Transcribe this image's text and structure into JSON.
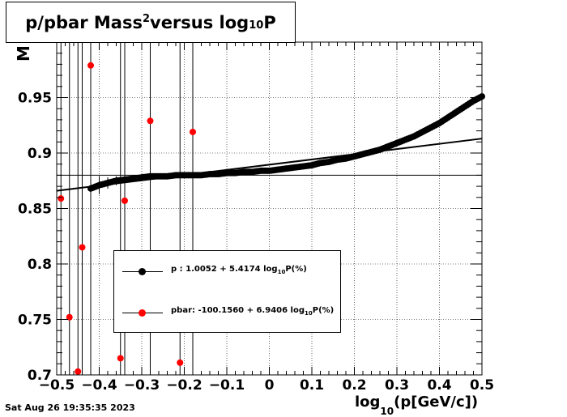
{
  "title": {
    "main": "p/pbar Mass",
    "sup": "2",
    "mid": " versus log",
    "sub": "10",
    "end": "P"
  },
  "timestamp": "Sat Aug 26 19:35:35 2023",
  "xlabel": {
    "pre": "log",
    "sub": "10",
    "post": "(p[GeV/c])"
  },
  "ylabel": "M",
  "legend": [
    {
      "label_pre": "p   : 1.0052 + 5.4174 log",
      "label_sub": "10",
      "label_post": "P(%)",
      "color": "#000000"
    },
    {
      "label_pre": "pbar: -100.1560 + 6.9406 log",
      "label_sub": "10",
      "label_post": "P(%)",
      "color": "#ff0000"
    }
  ],
  "chart_data": {
    "type": "scatter",
    "title": "p/pbar Mass^2 versus log10P",
    "xlabel": "log10(p[GeV/c])",
    "ylabel": "M",
    "xlim": [
      -0.5,
      0.5
    ],
    "ylim": [
      0.7,
      1.0
    ],
    "grid": true,
    "x_ticks": [
      "-0.5",
      "-0.4",
      "-0.3",
      "-0.2",
      "-0.1",
      "0",
      "0.1",
      "0.2",
      "0.3",
      "0.4",
      "0.5"
    ],
    "y_ticks": [
      "0.7",
      "0.75",
      "0.8",
      "0.85",
      "0.9",
      "0.95"
    ],
    "reference_line_y": 0.88,
    "series": [
      {
        "name": "p",
        "color": "#000000",
        "x": [
          -0.42,
          -0.4,
          -0.38,
          -0.36,
          -0.34,
          -0.32,
          -0.3,
          -0.28,
          -0.26,
          -0.24,
          -0.22,
          -0.2,
          -0.18,
          -0.16,
          -0.14,
          -0.12,
          -0.1,
          -0.08,
          -0.06,
          -0.04,
          -0.02,
          0.0,
          0.02,
          0.04,
          0.06,
          0.08,
          0.1,
          0.12,
          0.14,
          0.16,
          0.18,
          0.2,
          0.22,
          0.24,
          0.26,
          0.28,
          0.3,
          0.32,
          0.34,
          0.36,
          0.38,
          0.4,
          0.42,
          0.44,
          0.46,
          0.48,
          0.5
        ],
        "y": [
          0.868,
          0.871,
          0.873,
          0.875,
          0.876,
          0.877,
          0.878,
          0.879,
          0.879,
          0.879,
          0.88,
          0.88,
          0.88,
          0.88,
          0.881,
          0.881,
          0.882,
          0.882,
          0.883,
          0.883,
          0.884,
          0.884,
          0.885,
          0.886,
          0.887,
          0.888,
          0.889,
          0.891,
          0.892,
          0.894,
          0.895,
          0.897,
          0.899,
          0.901,
          0.903,
          0.906,
          0.909,
          0.912,
          0.915,
          0.919,
          0.923,
          0.927,
          0.932,
          0.937,
          0.942,
          0.947,
          0.951
        ],
        "errors": [
          0.012,
          0.008,
          0.005,
          0.004,
          0.003,
          0.002,
          0.002,
          0.002,
          0.002,
          0.002,
          0.002,
          0.002,
          0.001,
          0.001,
          0.001,
          0.001,
          0.001,
          0.001,
          0.001,
          0.001,
          0.001,
          0.001,
          0.001,
          0.001,
          0.001,
          0.001,
          0.001,
          0.001,
          0.001,
          0.001,
          0.001,
          0.001,
          0.001,
          0.001,
          0.001,
          0.001,
          0.001,
          0.001,
          0.001,
          0.001,
          0.001,
          0.001,
          0.001,
          0.001,
          0.001,
          0.001,
          0.001
        ]
      },
      {
        "name": "pbar",
        "color": "#ff0000",
        "x": [
          -0.49,
          -0.47,
          -0.45,
          -0.44,
          -0.42,
          -0.35,
          -0.34,
          -0.28,
          -0.21,
          -0.18
        ],
        "y": [
          0.859,
          0.752,
          0.703,
          0.815,
          0.979,
          0.715,
          0.857,
          0.929,
          0.711,
          0.919
        ],
        "errors": [
          0.3,
          0.3,
          0.3,
          0.3,
          0.3,
          0.3,
          0.3,
          0.3,
          0.3,
          0.3
        ]
      }
    ],
    "fit_lines": [
      {
        "series": "p",
        "x": [
          -0.5,
          0.5
        ],
        "y": [
          0.866,
          0.913
        ]
      }
    ]
  }
}
